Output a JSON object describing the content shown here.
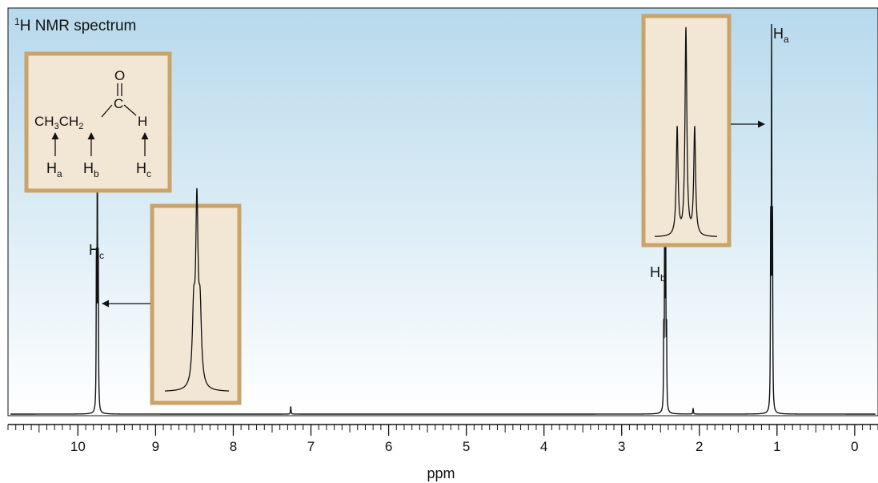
{
  "chart_data": {
    "type": "line",
    "title": "¹H NMR spectrum",
    "title_prefix": "1",
    "title_main": "H NMR spectrum",
    "xlabel": "ppm",
    "xlim": [
      10.9,
      -0.3
    ],
    "reversed_x": true,
    "grid": false,
    "x_ticks": [
      10,
      9,
      8,
      7,
      6,
      5,
      4,
      3,
      2,
      1,
      0
    ],
    "peaks": [
      {
        "label": "Hc",
        "label_main": "H",
        "label_sub": "c",
        "shift": 9.75,
        "height": 0.8,
        "multiplicity": "triplet"
      },
      {
        "label": "Hb",
        "label_main": "H",
        "label_sub": "b",
        "shift": 2.44,
        "height": 0.62,
        "multiplicity": "multiplet"
      },
      {
        "label": "Ha",
        "label_main": "H",
        "label_sub": "a",
        "shift": 1.07,
        "height": 1.0,
        "multiplicity": "triplet"
      }
    ],
    "minor_peaks": [
      {
        "shift": 7.26,
        "height": 0.02
      },
      {
        "shift": 2.08,
        "height": 0.015
      }
    ],
    "molecule": {
      "name": "propanal",
      "formula_text": [
        "CH",
        "3",
        "CH",
        "2",
        "C",
        "O",
        "H"
      ],
      "proton_labels": [
        {
          "main": "H",
          "sub": "a"
        },
        {
          "main": "H",
          "sub": "b"
        },
        {
          "main": "H",
          "sub": "c"
        }
      ]
    },
    "insets": [
      {
        "peak": "Hc",
        "description": "expanded view of Hc signal"
      },
      {
        "peak": "Ha",
        "description": "expanded triplet of Ha signal"
      }
    ],
    "colors": {
      "background_top": "#b7d9ec",
      "background_bottom": "#ffffff",
      "box_fill": "#f2e6d4",
      "box_border": "#c9a36a",
      "trace": "#111111"
    }
  }
}
